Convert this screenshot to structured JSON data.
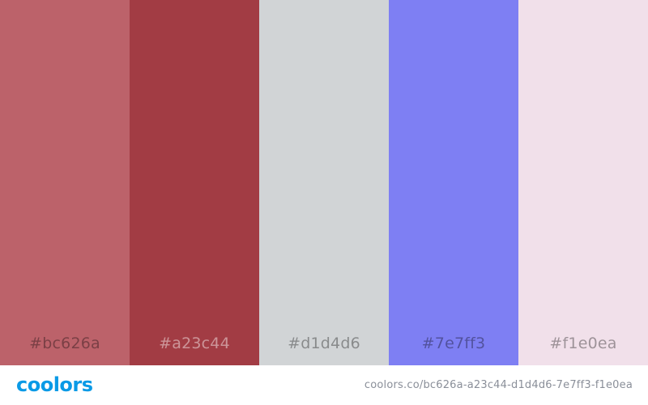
{
  "palette": {
    "swatches": [
      {
        "hex": "#bc626a",
        "color": "#bc626a"
      },
      {
        "hex": "#a23c44",
        "color": "#a23c44"
      },
      {
        "hex": "#d1d4d6",
        "color": "#d1d4d6"
      },
      {
        "hex": "#7e7ff3",
        "color": "#7e7ff3"
      },
      {
        "hex": "#f1e0ea",
        "color": "#f1e0ea"
      }
    ]
  },
  "footer": {
    "logo": "coolors",
    "logo_color": "#0a9ae6",
    "url": "coolors.co/bc626a-a23c44-d1d4d6-7e7ff3-f1e0ea"
  }
}
